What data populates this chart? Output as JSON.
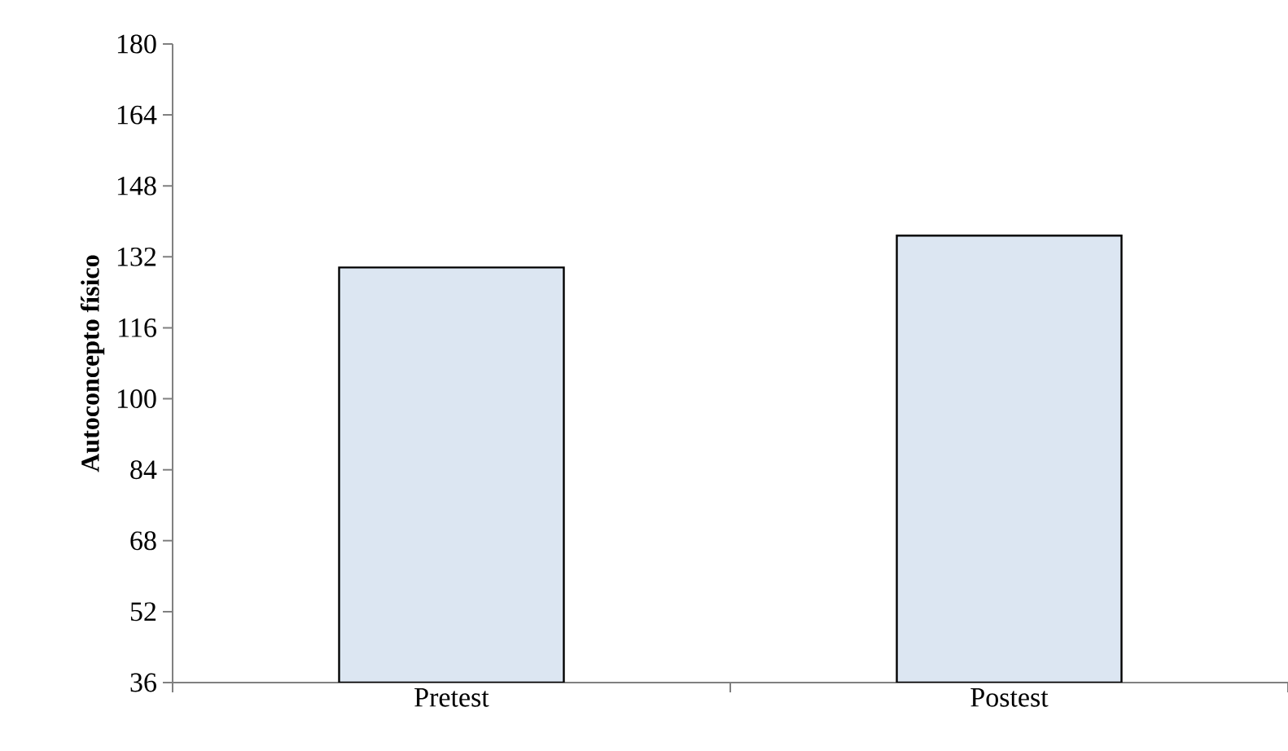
{
  "chart_data": {
    "type": "bar",
    "ylabel": "Autoconcepto físico",
    "categories": [
      "Pretest",
      "Postest"
    ],
    "values": [
      129.6,
      136.8
    ],
    "color": "#dce6f2",
    "ylim": [
      36,
      180
    ],
    "yticks": [
      36,
      52,
      68,
      84,
      100,
      116,
      132,
      148,
      164,
      180
    ]
  }
}
